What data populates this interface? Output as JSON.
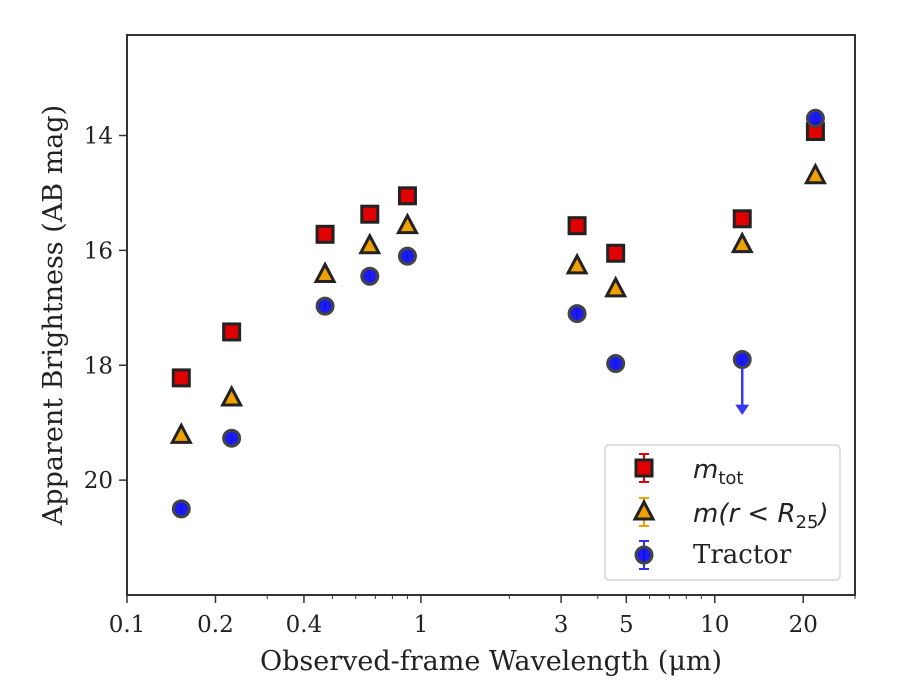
{
  "chart_data": {
    "type": "scatter",
    "xlabel": "Observed-frame Wavelength (μm)",
    "ylabel": "Apparent Brightness (AB mag)",
    "x_scale": "log",
    "xlim": [
      0.1,
      30
    ],
    "ylim": [
      22,
      12.25
    ],
    "y_inverted": true,
    "x_ticks": [
      0.1,
      0.2,
      0.4,
      1,
      3,
      5,
      10,
      20
    ],
    "x_tick_labels": [
      "0.1",
      "0.2",
      "0.4",
      "1",
      "3",
      "5",
      "10",
      "20"
    ],
    "y_ticks": [
      14,
      16,
      18,
      20
    ],
    "y_tick_labels": [
      "14",
      "16",
      "18",
      "20"
    ],
    "grid": false,
    "legend_position": "lower-right",
    "series": [
      {
        "name_parts": {
          "main": "m",
          "sub": "tot"
        },
        "marker": "square",
        "color": "#e00000",
        "edge_color": "#222222",
        "errorbar_color": "#e00000",
        "x": [
          0.153,
          0.227,
          0.472,
          0.67,
          0.9,
          3.4,
          4.6,
          12.4,
          22
        ],
        "y": [
          18.22,
          17.42,
          15.72,
          15.37,
          15.05,
          15.57,
          16.05,
          15.45,
          13.93
        ]
      },
      {
        "name_parts": {
          "main": "m(r < R",
          "sub": "25",
          "suffix": ")"
        },
        "marker": "triangle",
        "color": "#f0a000",
        "edge_color": "#222222",
        "errorbar_color": "#f0a000",
        "x": [
          0.153,
          0.227,
          0.472,
          0.67,
          0.9,
          3.4,
          4.6,
          12.4,
          22
        ],
        "y": [
          19.22,
          18.57,
          16.42,
          15.92,
          15.57,
          16.27,
          16.67,
          15.9,
          14.7
        ]
      },
      {
        "name": "Tractor",
        "marker": "circle",
        "color": "#1010ee",
        "edge_color": "#444444",
        "errorbar_color": "#3030f0",
        "x": [
          0.153,
          0.227,
          0.472,
          0.67,
          0.9,
          3.4,
          4.6,
          12.4,
          22
        ],
        "y": [
          20.5,
          19.27,
          16.97,
          16.45,
          16.1,
          17.1,
          17.97,
          17.9,
          13.7
        ],
        "upper_limit_indices": [
          7
        ],
        "upper_limit_arrow_to": 18.85
      }
    ]
  }
}
